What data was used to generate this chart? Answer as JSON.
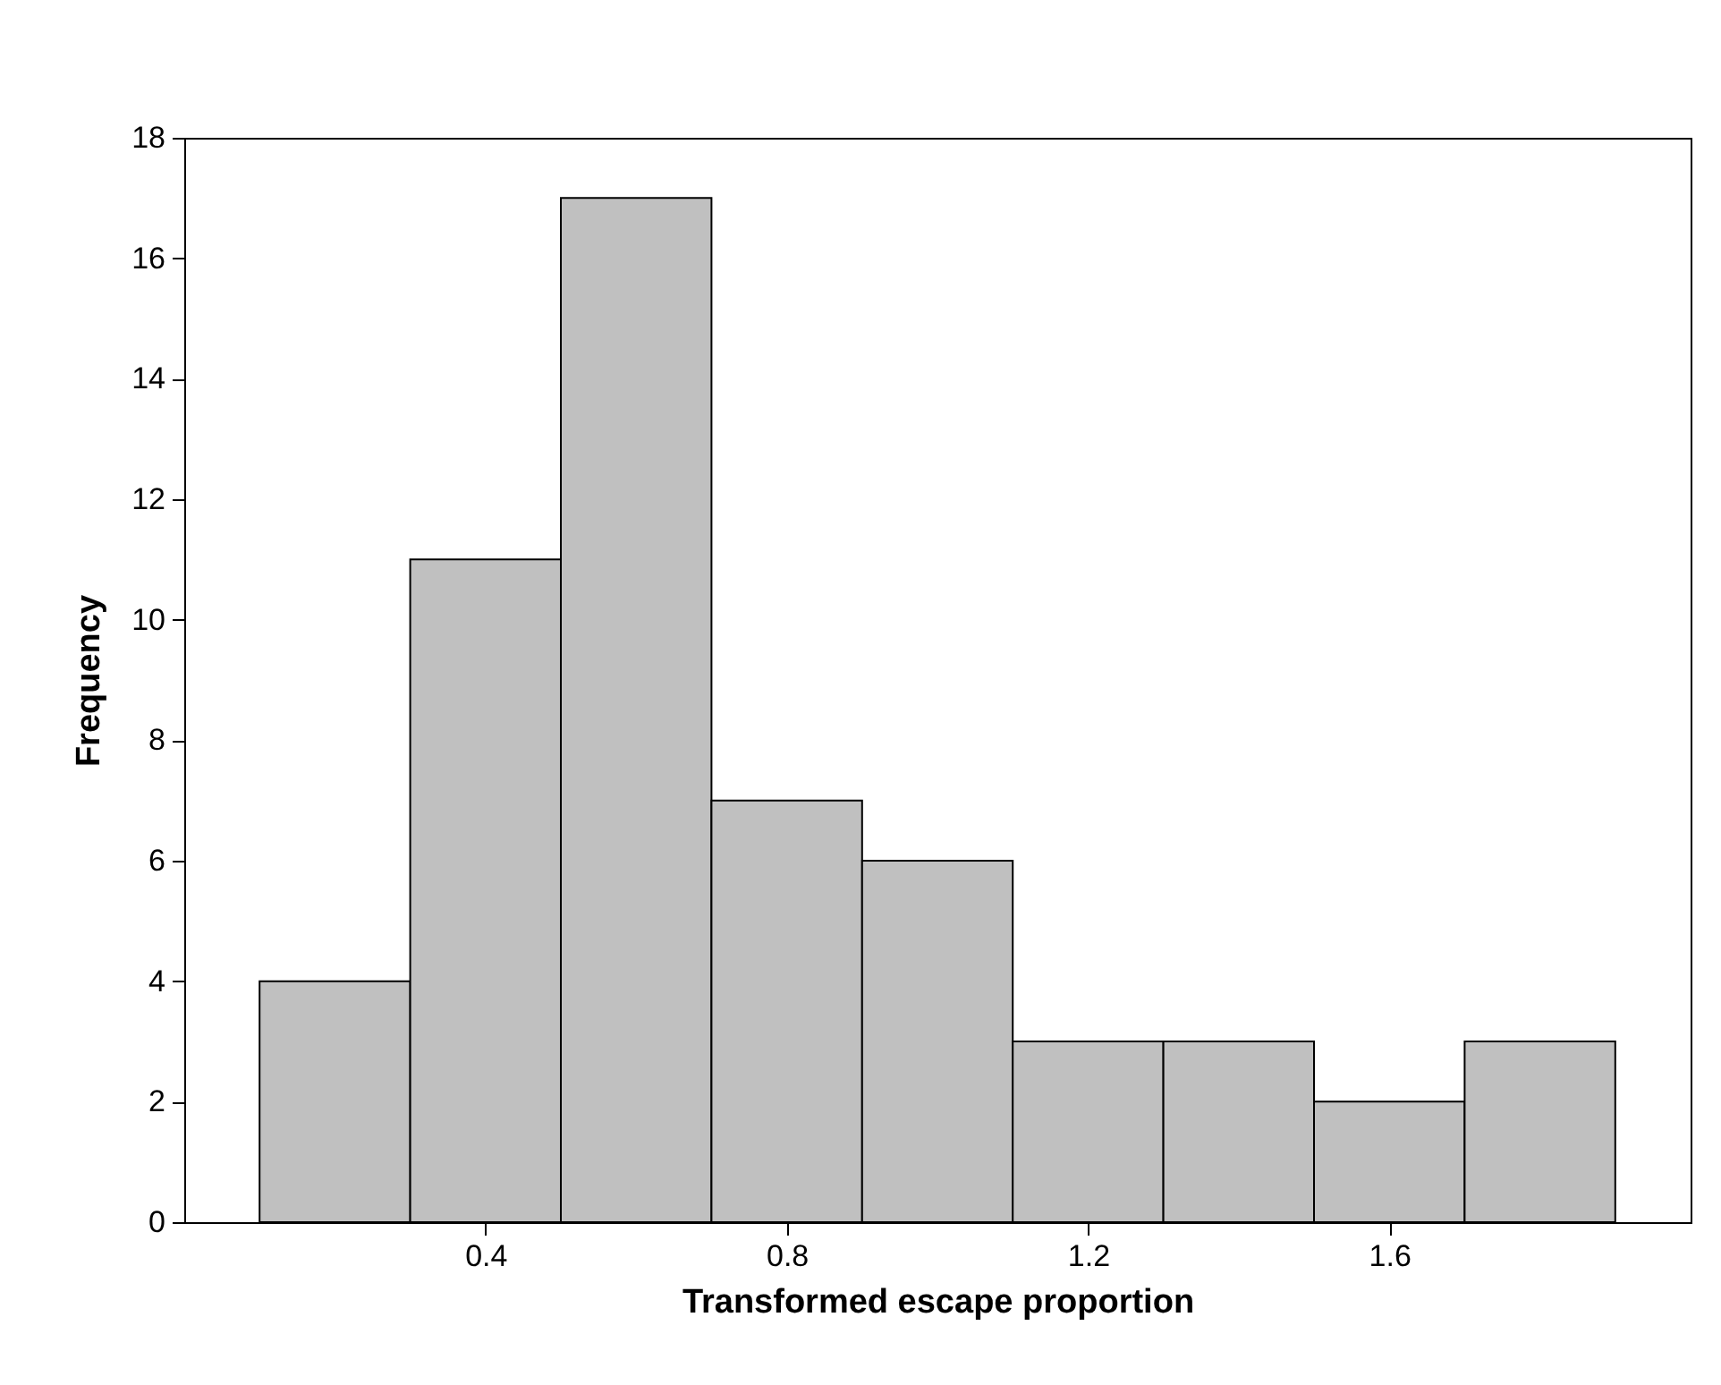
{
  "chart_data": {
    "type": "histogram",
    "xlabel": "Transformed escape proportion",
    "ylabel": "Frequency",
    "bins": [
      0.1,
      0.3,
      0.5,
      0.7,
      0.9,
      1.1,
      1.3,
      1.5,
      1.7,
      1.9
    ],
    "values": [
      4,
      11,
      17,
      7,
      6,
      3,
      3,
      2,
      3
    ],
    "color": "#c0c0c0",
    "xlim": [
      0,
      2
    ],
    "xticks": [
      0.4,
      0.8,
      1.2,
      1.6
    ],
    "ylim": [
      0,
      18
    ],
    "yticks": [
      0,
      2,
      4,
      6,
      8,
      10,
      12,
      14,
      16,
      18
    ],
    "grid": false
  }
}
